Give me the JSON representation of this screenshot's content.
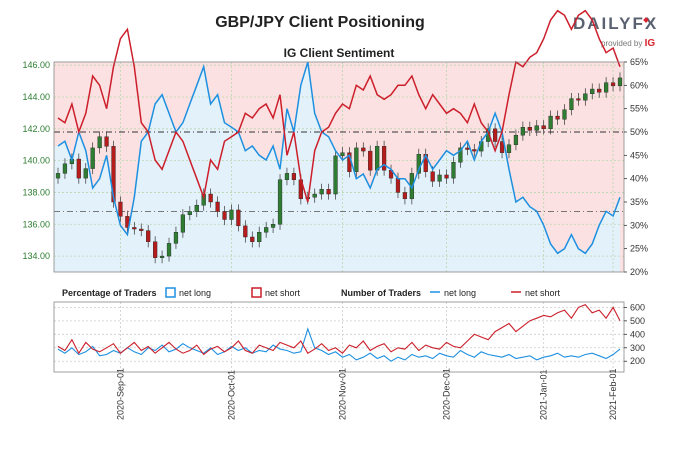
{
  "title": "GBP/JPY Client Positioning",
  "brand": {
    "word": "DAILYFX",
    "sub": "provided by",
    "sub_mark": "IG"
  },
  "chart_data": {
    "type": "line",
    "title": "GBP/JPY Client Positioning",
    "subtitle": "IG Client Sentiment",
    "price_axis": {
      "ticks": [
        "134.00",
        "136.00",
        "138.00",
        "140.00",
        "142.00",
        "144.00",
        "146.00"
      ],
      "range": [
        133.0,
        146.2
      ]
    },
    "sentiment_axis": {
      "ticks": [
        "20%",
        "25%",
        "30%",
        "35%",
        "40%",
        "45%",
        "50%",
        "55%",
        "60%",
        "65%"
      ],
      "range": [
        20,
        65
      ]
    },
    "traders_axis": {
      "ticks": [
        "200",
        "300",
        "400",
        "500",
        "600"
      ],
      "range": [
        120,
        640
      ]
    },
    "dates": [
      "2020-Sep-01",
      "2020-Oct-01",
      "2020-Nov-01",
      "2020-Dec-01",
      "2021-Jan-01",
      "2021-Feb-01"
    ],
    "legend": {
      "pct_label": "Percentage of Traders",
      "pct_long": "net long",
      "pct_short": "net short",
      "num_label": "Number of Traders",
      "num_long": "net long",
      "num_short": "net short"
    },
    "colors": {
      "long": "#1e90e0",
      "short": "#cc1f2b",
      "up": "#2e7d32",
      "down": "#b71c1c",
      "long_fill": "#e3f1fb",
      "short_fill": "#fbe1e1"
    },
    "net_long_pct": [
      47,
      48,
      44,
      50,
      46,
      38,
      40,
      45,
      36,
      30,
      28,
      36,
      48,
      50,
      56,
      58,
      54,
      50,
      52,
      56,
      60,
      64,
      56,
      58,
      52,
      51,
      50,
      46,
      47,
      45,
      44,
      47,
      42,
      55,
      50,
      60,
      65,
      54,
      50,
      49,
      46,
      44,
      45,
      40,
      41,
      38,
      42,
      43,
      42,
      40,
      40,
      38,
      42,
      45,
      42,
      44,
      46,
      45,
      46,
      48,
      44,
      48,
      50,
      54,
      50,
      42,
      35,
      36,
      34,
      33,
      30,
      26,
      24,
      25,
      28,
      25,
      24,
      26,
      30,
      33,
      32,
      36
    ],
    "price_close": [
      139.2,
      139.8,
      140.1,
      138.9,
      139.5,
      140.8,
      141.5,
      140.9,
      137.4,
      136.5,
      135.8,
      135.7,
      135.6,
      134.9,
      133.9,
      134.0,
      134.8,
      135.5,
      136.6,
      136.8,
      137.2,
      137.9,
      137.4,
      136.8,
      136.3,
      136.9,
      135.9,
      135.2,
      134.9,
      135.5,
      135.8,
      136.0,
      138.8,
      139.2,
      138.8,
      137.6,
      137.7,
      137.9,
      138.2,
      137.9,
      140.3,
      140.5,
      139.3,
      140.8,
      140.6,
      139.4,
      140.9,
      139.4,
      138.9,
      138.0,
      137.6,
      139.2,
      140.4,
      139.3,
      138.7,
      139.1,
      138.9,
      139.9,
      140.8,
      140.7,
      140.6,
      141.2,
      142.0,
      141.2,
      140.5,
      141.0,
      141.6,
      142.1,
      141.9,
      142.2,
      142.0,
      142.8,
      142.6,
      143.2,
      143.9,
      143.8,
      144.2,
      144.5,
      144.3,
      144.9,
      144.7,
      145.2
    ],
    "traders_long": [
      290,
      260,
      300,
      250,
      270,
      310,
      240,
      250,
      280,
      260,
      300,
      270,
      250,
      300,
      280,
      320,
      270,
      290,
      330,
      300,
      280,
      260,
      300,
      250,
      270,
      310,
      280,
      300,
      260,
      280,
      270,
      320,
      290,
      280,
      260,
      270,
      440,
      300,
      280,
      250,
      270,
      230,
      250,
      210,
      230,
      260,
      220,
      240,
      200,
      230,
      210,
      250,
      230,
      240,
      220,
      260,
      240,
      230,
      280,
      250,
      230,
      270,
      250,
      240,
      230,
      250,
      220,
      230,
      240,
      210,
      230,
      240,
      260,
      230,
      240,
      230,
      250,
      260,
      240,
      220,
      250,
      290
    ],
    "traders_short": [
      310,
      280,
      360,
      260,
      340,
      290,
      270,
      300,
      330,
      260,
      300,
      340,
      280,
      310,
      260,
      300,
      340,
      290,
      260,
      280,
      320,
      250,
      290,
      310,
      270,
      300,
      350,
      280,
      260,
      320,
      300,
      280,
      340,
      320,
      300,
      350,
      260,
      290,
      330,
      280,
      300,
      260,
      320,
      300,
      350,
      280,
      310,
      330,
      270,
      300,
      290,
      340,
      280,
      320,
      300,
      290,
      340,
      310,
      300,
      350,
      400,
      380,
      360,
      420,
      450,
      480,
      420,
      460,
      500,
      520,
      540,
      530,
      560,
      580,
      520,
      600,
      620,
      560,
      580,
      520,
      600,
      500
    ]
  }
}
